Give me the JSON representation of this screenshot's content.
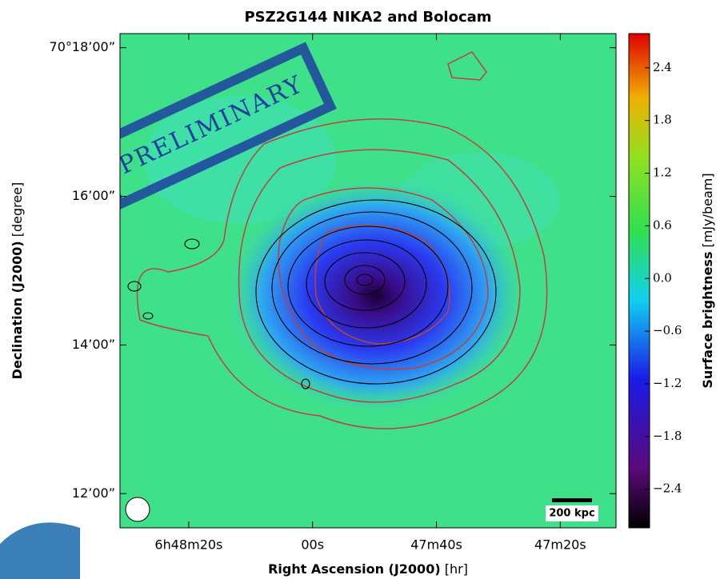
{
  "chart_data": {
    "type": "heatmap",
    "title": "PSZ2G144 NIKA2 and Bolocam",
    "x_label": "Right Ascension (J2000)",
    "x_unit": "[hr]",
    "y_label": "Declination (J2000)",
    "y_unit": "[degree]",
    "colorbar_label": "Surface brightness",
    "colorbar_unit": "[mJy/beam]",
    "xlim": [
      24511.1,
      24431
    ],
    "xticks": [
      {
        "value": 24500,
        "label": "6h48m20s"
      },
      {
        "value": 24480,
        "label": "00s"
      },
      {
        "value": 24460,
        "label": "47m40s"
      },
      {
        "value": 24440,
        "label": "47m20s"
      }
    ],
    "ylim": [
      4211.54,
      4218.19
    ],
    "yticks": [
      {
        "value": 4218,
        "label": "70°18’00”"
      },
      {
        "value": 4216,
        "label": "16’00”"
      },
      {
        "value": 4214,
        "label": "14’00”"
      },
      {
        "value": 4212,
        "label": "12’00”"
      }
    ],
    "clim": [
      -2.84,
      2.79
    ],
    "cticks": [
      2.4,
      1.8,
      1.2,
      0.6,
      {
        "value": 0,
        "label": "0.0"
      },
      {
        "value": -0.6,
        "label": "−0.6"
      },
      {
        "value": -1.2,
        "label": "−1.2"
      },
      {
        "value": -1.8,
        "label": "−1.8"
      },
      {
        "value": -2.4,
        "label": "−2.4"
      }
    ],
    "scale_bar": "200 kpc",
    "stamp": "PRELIMINARY"
  }
}
